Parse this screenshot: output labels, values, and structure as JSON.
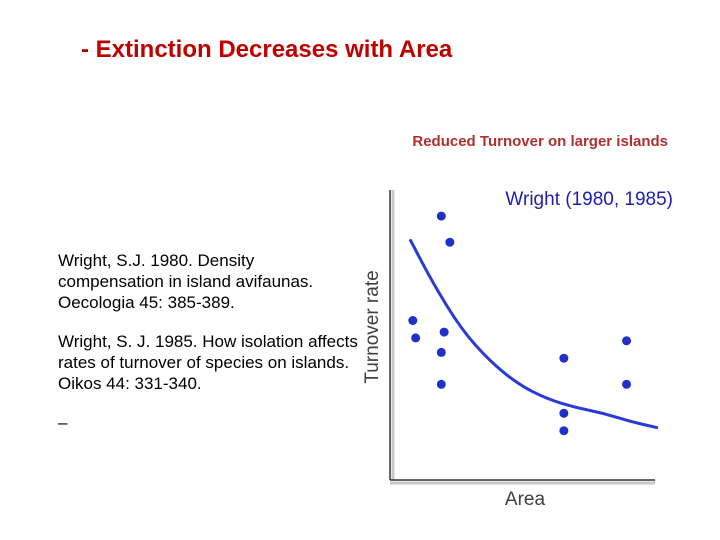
{
  "slide": {
    "title": "- Extinction Decreases with Area",
    "subtitle": "Reduced Turnover on larger islands"
  },
  "references": [
    "Wright, S.J. 1980. Density compensation in island avifaunas. Oecologia 45: 385-389.",
    "Wright, S. J. 1985. How isolation affects rates of turnover of species on islands. Oikos 44: 331-340."
  ],
  "trailing_mark": "–",
  "chart_data": {
    "type": "scatter",
    "title": "Wright (1980, 1985)",
    "xlabel": "Area",
    "ylabel": "Turnover rate",
    "xlim": [
      0,
      10
    ],
    "ylim": [
      0,
      10
    ],
    "ticks": "none",
    "grid": false,
    "point_color": "#2030c8",
    "curve_color": "#2a3ad8",
    "points": [
      {
        "x": 1.8,
        "y": 9.1
      },
      {
        "x": 2.1,
        "y": 8.2
      },
      {
        "x": 0.8,
        "y": 5.5
      },
      {
        "x": 0.9,
        "y": 4.9
      },
      {
        "x": 1.9,
        "y": 5.1
      },
      {
        "x": 1.8,
        "y": 4.4
      },
      {
        "x": 1.8,
        "y": 3.3
      },
      {
        "x": 6.1,
        "y": 4.2
      },
      {
        "x": 8.3,
        "y": 4.8
      },
      {
        "x": 8.3,
        "y": 3.3
      },
      {
        "x": 6.1,
        "y": 2.3
      },
      {
        "x": 6.1,
        "y": 1.7
      }
    ],
    "trend_curve": [
      {
        "x": 0.7,
        "y": 8.3
      },
      {
        "x": 1.5,
        "y": 6.8
      },
      {
        "x": 2.5,
        "y": 5.2
      },
      {
        "x": 3.5,
        "y": 4.1
      },
      {
        "x": 4.5,
        "y": 3.3
      },
      {
        "x": 5.5,
        "y": 2.8
      },
      {
        "x": 6.5,
        "y": 2.5
      },
      {
        "x": 7.5,
        "y": 2.3
      },
      {
        "x": 8.5,
        "y": 2.0
      },
      {
        "x": 9.4,
        "y": 1.8
      }
    ]
  }
}
